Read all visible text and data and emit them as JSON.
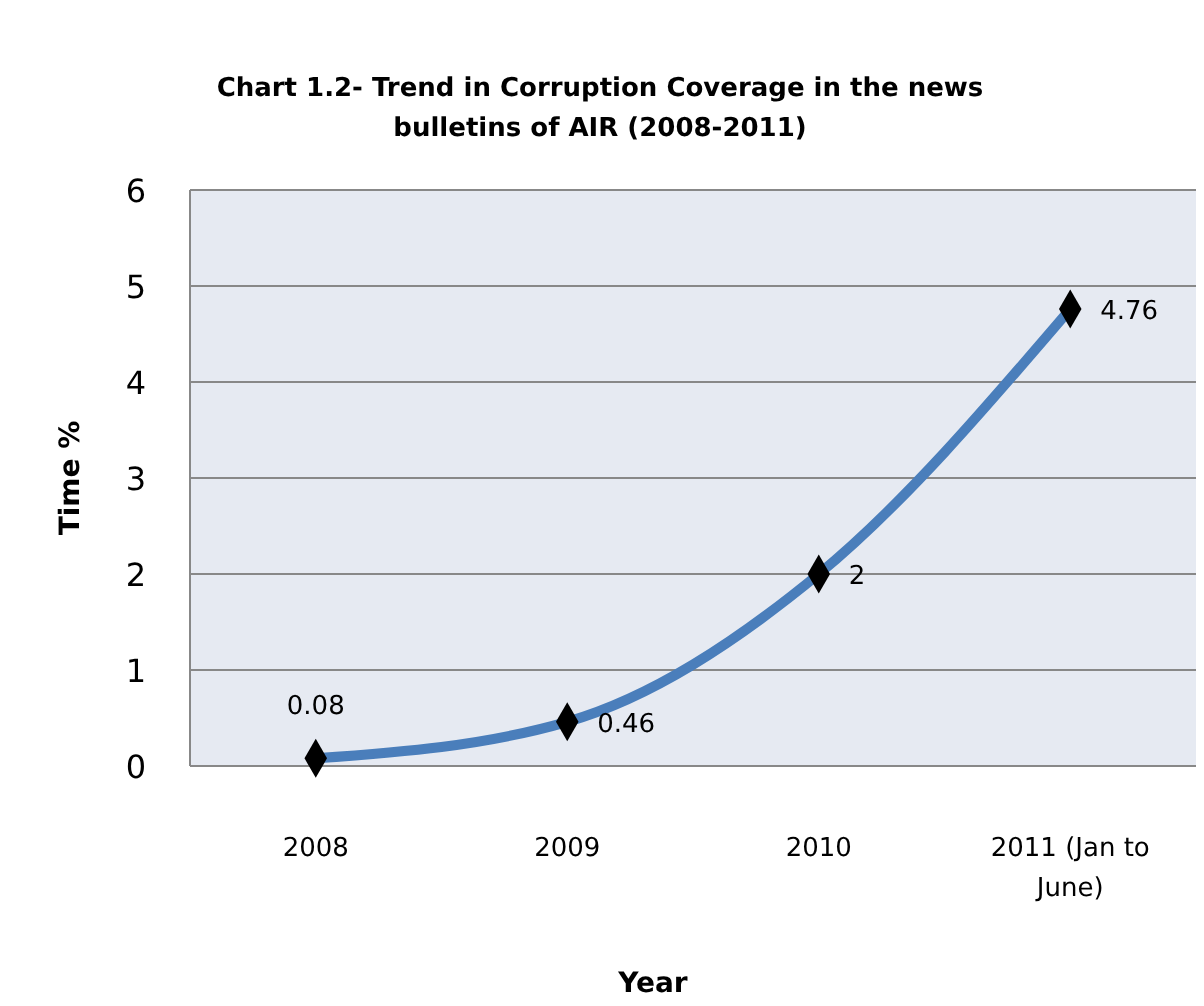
{
  "chart_data": {
    "type": "line",
    "title": "Chart 1.2- Trend in Corruption Coverage in the news bulletins of AIR (2008-2011)",
    "xlabel": "Year",
    "ylabel": "Time %",
    "categories": [
      "2008",
      "2009",
      "2010",
      "2011 (Jan to June)"
    ],
    "series": [
      {
        "color": "#4a7ebb",
        "values": [
          0.08,
          0.46,
          2,
          4.76
        ]
      }
    ],
    "ylim": [
      0,
      6
    ],
    "yticks": [
      0,
      1,
      2,
      3,
      4,
      5,
      6
    ],
    "grid": "y",
    "marker": "diamond",
    "line_style": "solid",
    "data_labels": true
  }
}
